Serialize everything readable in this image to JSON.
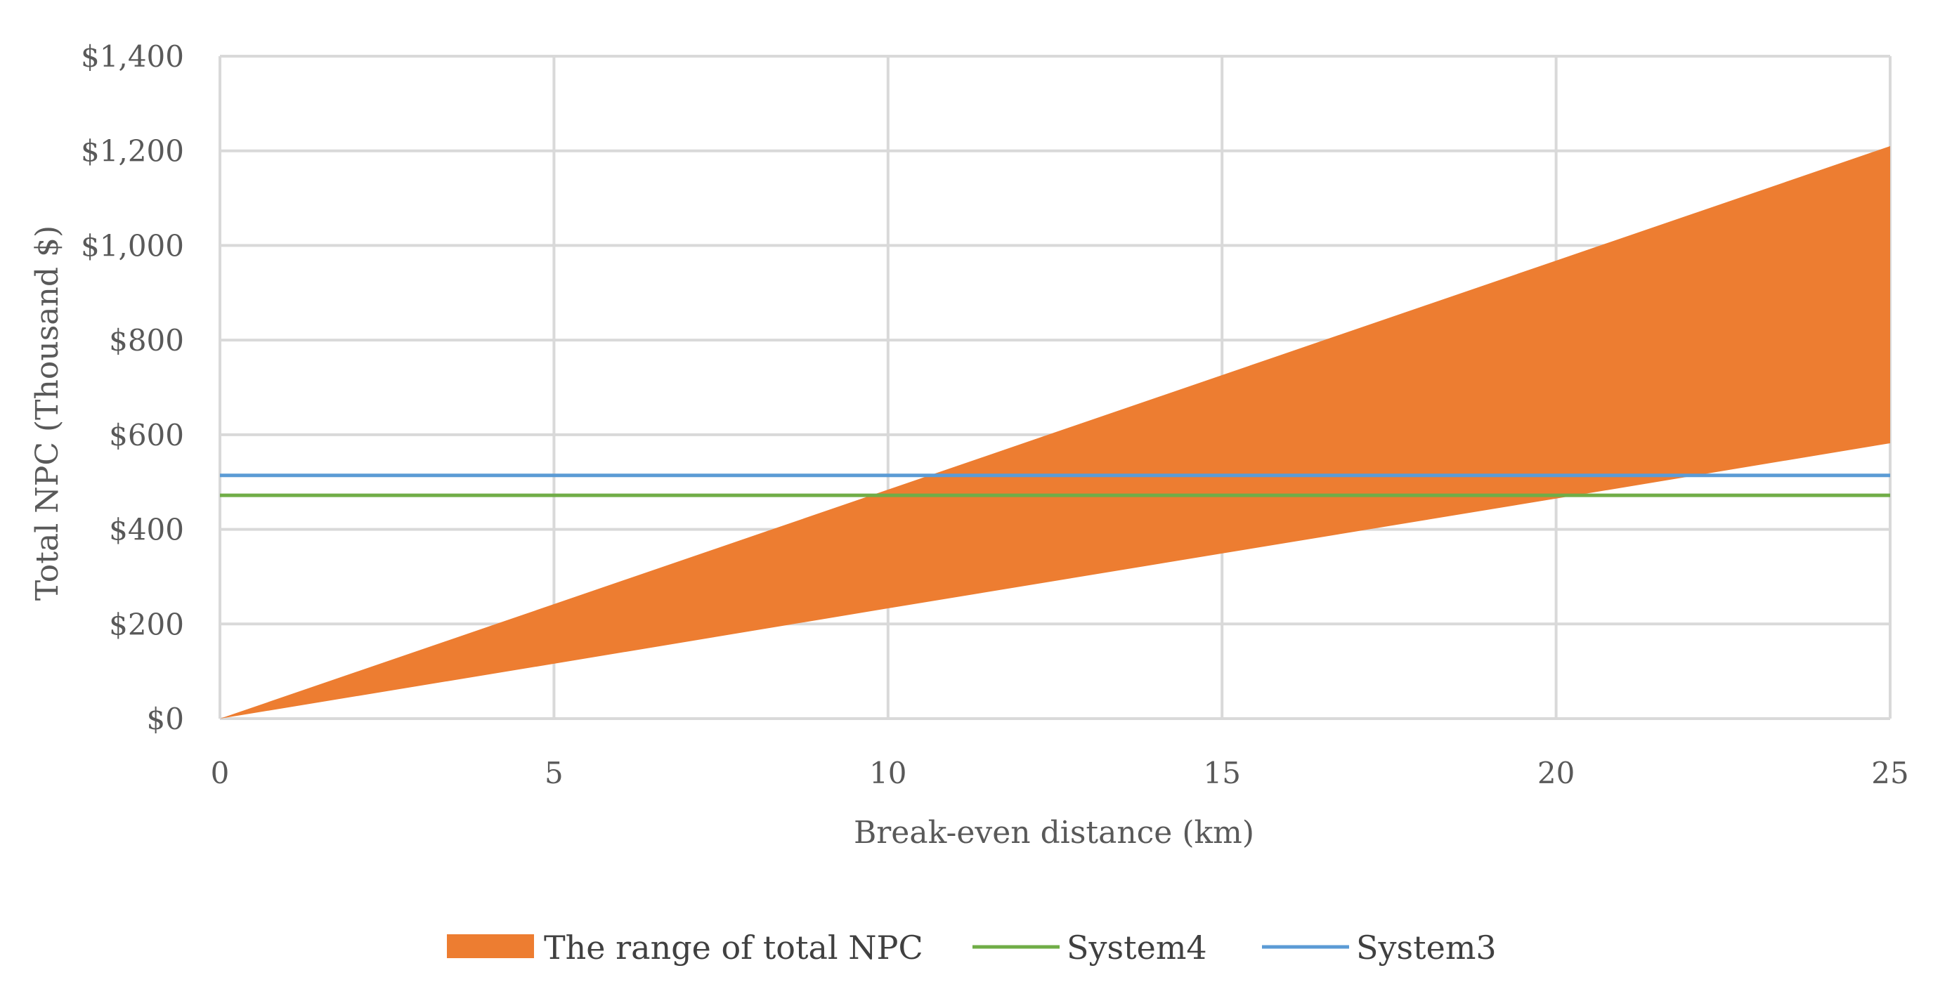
{
  "chart_data": {
    "type": "area",
    "title": "",
    "xlabel": "Break-even distance (km)",
    "ylabel": "Total NPC (Thousand $)",
    "xlim": [
      0,
      25
    ],
    "ylim": [
      0,
      1400
    ],
    "x_ticks": [
      0,
      5,
      10,
      15,
      20,
      25
    ],
    "x_tick_labels": [
      "0",
      "5",
      "10",
      "15",
      "20",
      "25"
    ],
    "y_ticks": [
      0,
      200,
      400,
      600,
      800,
      1000,
      1200,
      1400
    ],
    "y_tick_labels": [
      "$0",
      "$200",
      "$400",
      "$600",
      "$800",
      "$1,000",
      "$1,200",
      "$1,400"
    ],
    "grid": true,
    "legend_position": "bottom",
    "series": [
      {
        "name": "The range of total NPC",
        "kind": "band",
        "color": "#ED7D31",
        "x": [
          0,
          5,
          10,
          15,
          20,
          25
        ],
        "lower": [
          0,
          116,
          233,
          349,
          465,
          582
        ],
        "upper": [
          0,
          242,
          484,
          726,
          968,
          1210
        ]
      },
      {
        "name": "System4",
        "kind": "hline",
        "color": "#70AD47",
        "y": 472
      },
      {
        "name": "System3",
        "kind": "hline",
        "color": "#5B9BD5",
        "y": 514
      }
    ]
  }
}
